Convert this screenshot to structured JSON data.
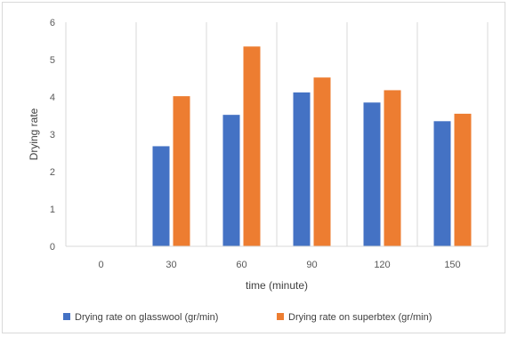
{
  "chart_data": {
    "type": "bar",
    "title": "",
    "xlabel": "time (minute)",
    "ylabel": "Drying rate",
    "ylim": [
      0,
      6
    ],
    "yticks": [
      0,
      1,
      2,
      3,
      4,
      5,
      6
    ],
    "categories": [
      "0",
      "30",
      "60",
      "90",
      "120",
      "150"
    ],
    "series": [
      {
        "name": "Drying rate on glasswool (gr/min)",
        "color": "#4472c4",
        "values": [
          0,
          2.68,
          3.52,
          4.12,
          3.85,
          3.35
        ]
      },
      {
        "name": "Drying rate on superbtex (gr/min)",
        "color": "#ed7d31",
        "values": [
          0,
          4.02,
          5.35,
          4.52,
          4.18,
          3.55
        ]
      }
    ],
    "grid": "vertical",
    "legend": "bottom"
  }
}
